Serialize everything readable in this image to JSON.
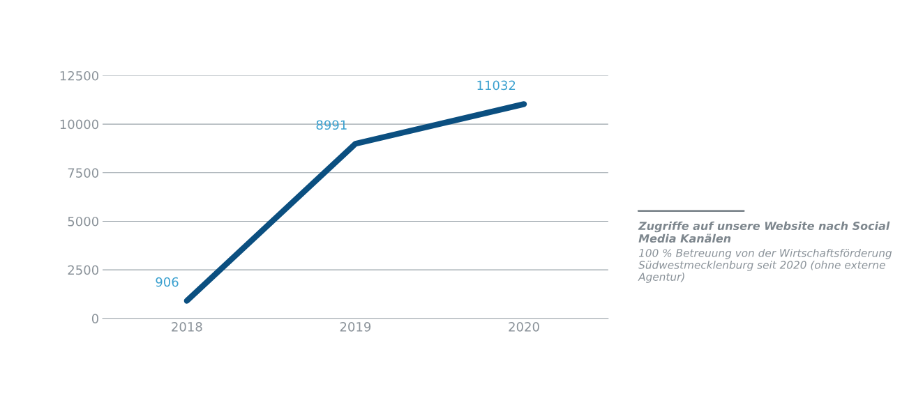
{
  "chart_data": {
    "type": "line",
    "title": "Zugriffe auf unsere Website nach Social Media Kanälen",
    "subtitle": "100 % Betreuung von der Wirtschaftsförderung Südwestmecklenburg seit 2020 (ohne externe Agentur)",
    "categories": [
      "2018",
      "2019",
      "2020"
    ],
    "series": [
      {
        "color": "#0b4f80",
        "values": [
          906,
          8991,
          11032
        ]
      }
    ],
    "ylim": [
      0,
      12500
    ],
    "yticks": [
      0,
      2500,
      5000,
      7500,
      10000,
      12500
    ],
    "grid": "y",
    "data_labels": true,
    "marker": "none",
    "line_style": "solid"
  }
}
